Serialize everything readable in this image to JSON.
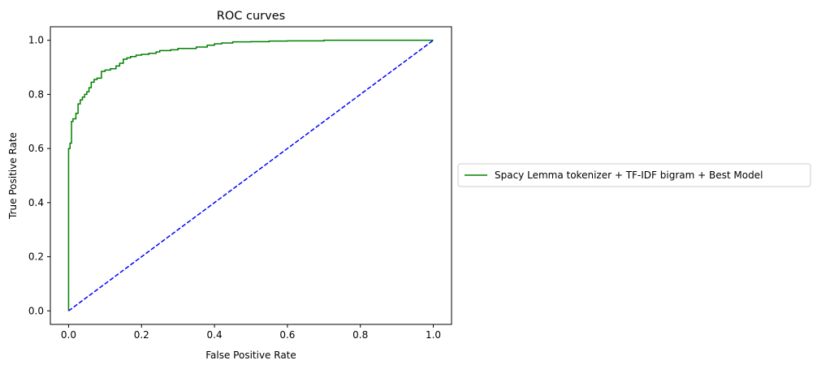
{
  "chart_data": {
    "type": "line",
    "title": "ROC curves",
    "xlabel": "False Positive Rate",
    "ylabel": "True Positive Rate",
    "xlim": [
      -0.05,
      1.05
    ],
    "ylim": [
      -0.05,
      1.05
    ],
    "xticks": [
      0.0,
      0.2,
      0.4,
      0.6,
      0.8,
      1.0
    ],
    "xtick_labels": [
      "0.0",
      "0.2",
      "0.4",
      "0.6",
      "0.8",
      "1.0"
    ],
    "yticks": [
      0.0,
      0.2,
      0.4,
      0.6,
      0.8,
      1.0
    ],
    "ytick_labels": [
      "0.0",
      "0.2",
      "0.4",
      "0.6",
      "0.8",
      "1.0"
    ],
    "grid": false,
    "legend": {
      "placement": "outside right, center"
    },
    "series": [
      {
        "name": "Spacy Lemma tokenizer + TF-IDF bigram + Best Model",
        "color": "#008000",
        "style": "step",
        "x": [
          0.0,
          0.0,
          0.004,
          0.004,
          0.008,
          0.008,
          0.012,
          0.012,
          0.02,
          0.02,
          0.026,
          0.026,
          0.032,
          0.032,
          0.038,
          0.038,
          0.044,
          0.044,
          0.05,
          0.05,
          0.056,
          0.056,
          0.062,
          0.062,
          0.07,
          0.07,
          0.078,
          0.078,
          0.09,
          0.09,
          0.1,
          0.1,
          0.115,
          0.115,
          0.13,
          0.13,
          0.14,
          0.14,
          0.15,
          0.15,
          0.16,
          0.16,
          0.17,
          0.17,
          0.185,
          0.185,
          0.2,
          0.2,
          0.22,
          0.22,
          0.24,
          0.24,
          0.25,
          0.25,
          0.28,
          0.28,
          0.3,
          0.3,
          0.35,
          0.35,
          0.38,
          0.38,
          0.4,
          0.4,
          0.42,
          0.42,
          0.45,
          0.45,
          0.5,
          0.5,
          0.55,
          0.55,
          0.6,
          0.6,
          0.7,
          0.7,
          0.72,
          1.0
        ],
        "y": [
          0.0,
          0.6,
          0.6,
          0.62,
          0.62,
          0.7,
          0.7,
          0.71,
          0.71,
          0.73,
          0.73,
          0.765,
          0.765,
          0.78,
          0.78,
          0.79,
          0.79,
          0.8,
          0.8,
          0.81,
          0.81,
          0.825,
          0.825,
          0.845,
          0.845,
          0.855,
          0.855,
          0.86,
          0.86,
          0.885,
          0.885,
          0.89,
          0.89,
          0.895,
          0.895,
          0.905,
          0.905,
          0.915,
          0.915,
          0.93,
          0.93,
          0.935,
          0.935,
          0.94,
          0.94,
          0.945,
          0.945,
          0.948,
          0.948,
          0.952,
          0.952,
          0.957,
          0.957,
          0.962,
          0.962,
          0.965,
          0.965,
          0.97,
          0.97,
          0.975,
          0.975,
          0.982,
          0.982,
          0.987,
          0.987,
          0.99,
          0.99,
          0.994,
          0.994,
          0.995,
          0.995,
          0.997,
          0.997,
          0.998,
          0.998,
          1.0,
          1.0,
          1.0
        ]
      },
      {
        "name": "",
        "color": "#0000ff",
        "style": "dashed",
        "x": [
          0.0,
          1.0
        ],
        "y": [
          0.0,
          1.0
        ]
      }
    ]
  }
}
